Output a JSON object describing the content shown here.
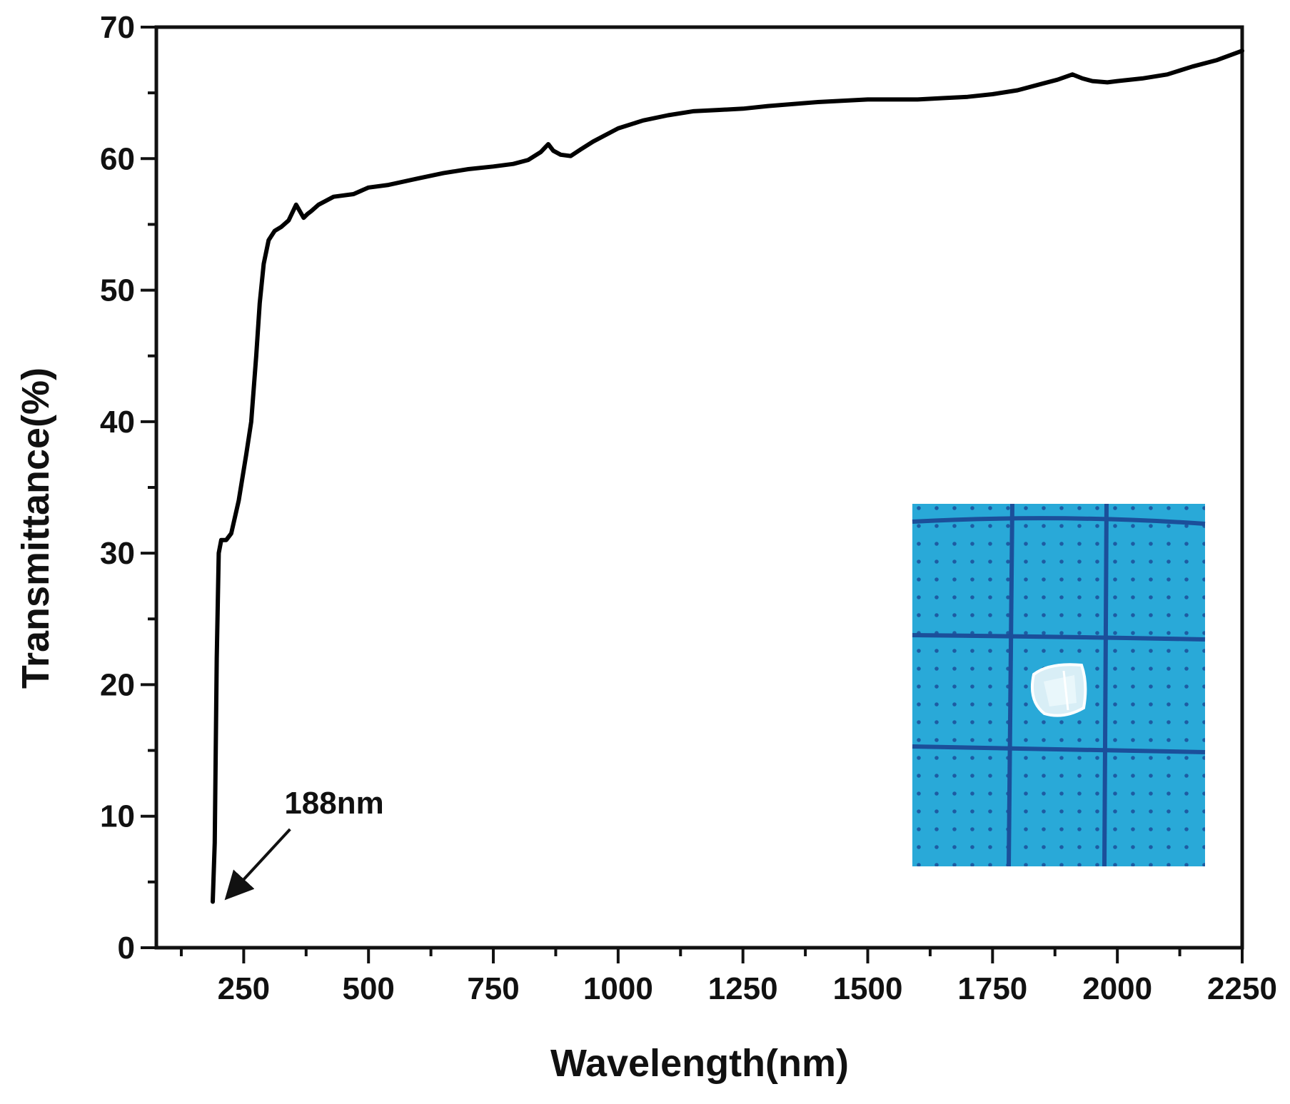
{
  "chart_data": {
    "type": "line",
    "title": "",
    "xlabel": "Wavelength(nm)",
    "ylabel": "Transmittance(%)",
    "xlim": [
      75,
      2250
    ],
    "ylim": [
      0,
      70
    ],
    "grid": false,
    "x_major_ticks": [
      250,
      500,
      750,
      1000,
      1250,
      1500,
      1750,
      2000,
      2250
    ],
    "x_tick_labels": [
      "250",
      "500",
      "750",
      "1000",
      "1250",
      "1500",
      "1750",
      "2000",
      "2250"
    ],
    "x_minor_ticks": [
      125,
      375,
      625,
      875,
      1125,
      1375,
      1625,
      1875,
      2125
    ],
    "y_major_ticks": [
      0,
      10,
      20,
      30,
      40,
      50,
      60,
      70
    ],
    "y_tick_labels": [
      "0",
      "10",
      "20",
      "30",
      "40",
      "50",
      "60",
      "70"
    ],
    "y_minor_ticks": [
      5,
      15,
      25,
      35,
      45,
      55,
      65
    ],
    "series": [
      {
        "name": "Transmittance",
        "color": "#000000",
        "x": [
          188,
          192,
          196,
          200,
          205,
          210,
          215,
          225,
          240,
          255,
          265,
          275,
          282,
          290,
          300,
          312,
          325,
          340,
          355,
          370,
          378,
          385,
          400,
          430,
          470,
          500,
          540,
          600,
          650,
          700,
          750,
          790,
          820,
          845,
          860,
          870,
          885,
          905,
          925,
          950,
          1000,
          1050,
          1100,
          1150,
          1200,
          1250,
          1300,
          1400,
          1500,
          1600,
          1650,
          1700,
          1750,
          1800,
          1850,
          1880,
          1910,
          1930,
          1950,
          1980,
          2000,
          2050,
          2100,
          2150,
          2200,
          2250
        ],
        "y": [
          3.5,
          8,
          22,
          30,
          31,
          31,
          31,
          31.5,
          34,
          37.5,
          40,
          45,
          49,
          52,
          53.8,
          54.5,
          54.8,
          55.3,
          56.5,
          55.5,
          55.8,
          56.0,
          56.5,
          57.1,
          57.3,
          57.8,
          58.0,
          58.5,
          58.9,
          59.2,
          59.4,
          59.6,
          59.9,
          60.5,
          61.1,
          60.6,
          60.3,
          60.2,
          60.7,
          61.3,
          62.3,
          62.9,
          63.3,
          63.6,
          63.7,
          63.8,
          64.0,
          64.3,
          64.5,
          64.5,
          64.6,
          64.7,
          64.9,
          65.2,
          65.7,
          66.0,
          66.4,
          66.1,
          65.9,
          65.8,
          65.9,
          66.1,
          66.4,
          67.0,
          67.5,
          68.2
        ]
      }
    ],
    "annotations": [
      {
        "text": "188nm",
        "arrow_to_x": 188,
        "arrow_to_y": 3.5,
        "label_x": 340,
        "label_y": 10.2
      }
    ],
    "inset": {
      "description_name": "sample-crystal-photo",
      "background_color": "#27a7d6",
      "grid_color": "#1b4f9a"
    }
  }
}
